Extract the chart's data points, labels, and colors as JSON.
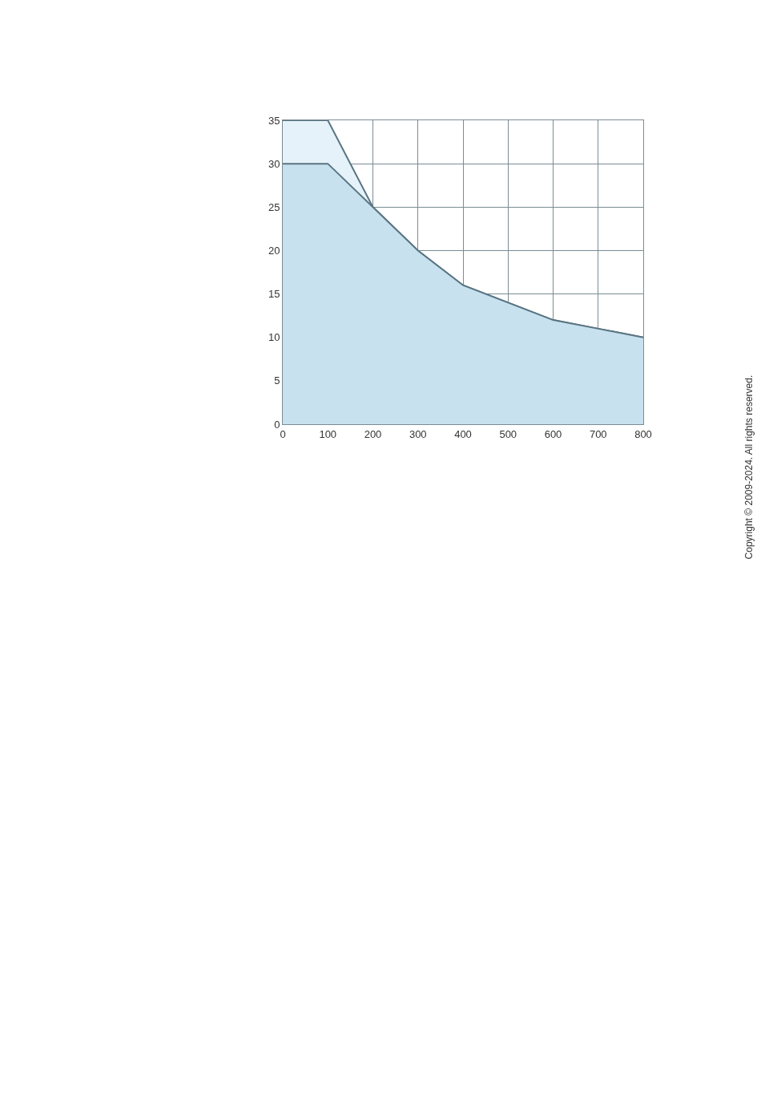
{
  "chart_data": {
    "type": "area",
    "x": [
      0,
      100,
      200,
      300,
      400,
      500,
      600,
      700,
      800
    ],
    "series": [
      {
        "color": "#e6f2f9",
        "values": [
          35,
          35,
          25,
          20,
          16,
          14,
          12,
          11,
          10
        ]
      },
      {
        "color": "#c8e1ee",
        "values": [
          30,
          30,
          25,
          20,
          16,
          14,
          12,
          11,
          10
        ]
      }
    ],
    "xlim": [
      0,
      800
    ],
    "xticks": [
      0,
      100,
      200,
      300,
      400,
      500,
      600,
      700,
      800
    ],
    "ylim": [
      0,
      35
    ],
    "yticks": [
      0,
      5,
      10,
      15,
      20,
      25,
      30,
      35
    ],
    "grid": true,
    "annotations": [
      "Copyright © 2009-2024. All rights reserved."
    ]
  }
}
